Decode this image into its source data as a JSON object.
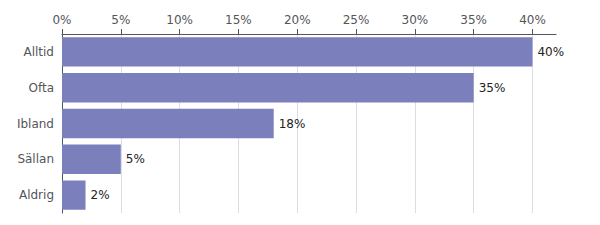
{
  "chart_data": {
    "type": "bar",
    "orientation": "horizontal",
    "categories": [
      "Alltid",
      "Ofta",
      "Ibland",
      "Sällan",
      "Aldrig"
    ],
    "values": [
      40,
      35,
      18,
      5,
      2
    ],
    "value_labels": [
      "40%",
      "35%",
      "18%",
      "5%",
      "2%"
    ],
    "data_labels": true,
    "color": "#7b7fbc",
    "xlim": [
      0,
      42
    ],
    "xticks": [
      {
        "value": 0,
        "label": "0%"
      },
      {
        "value": 5,
        "label": "5%"
      },
      {
        "value": 10,
        "label": "10%"
      },
      {
        "value": 15,
        "label": "15%"
      },
      {
        "value": 20,
        "label": "20%"
      },
      {
        "value": 25,
        "label": "25%"
      },
      {
        "value": 30,
        "label": "30%"
      },
      {
        "value": 35,
        "label": "35%"
      },
      {
        "value": 40,
        "label": "40%"
      }
    ],
    "grid": true
  }
}
